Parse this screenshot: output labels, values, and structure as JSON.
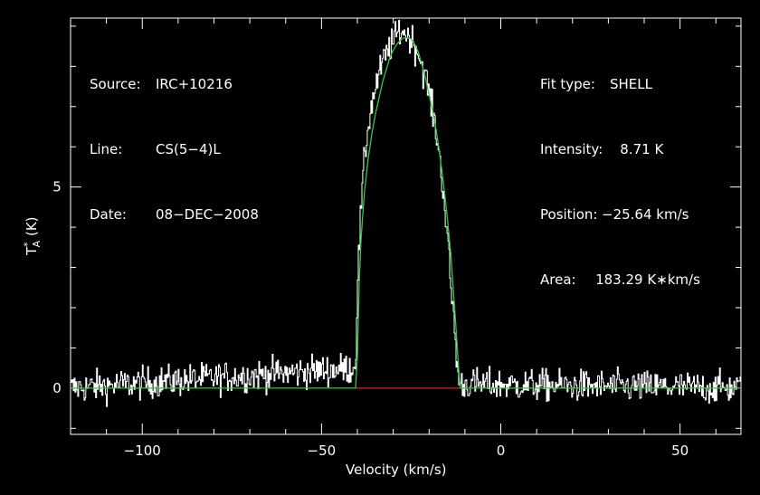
{
  "info_left": [
    {
      "key": "Source:",
      "value": "IRC+10216"
    },
    {
      "key": "Line:",
      "value": "CS(5−4)L"
    },
    {
      "key": "Date:",
      "value": "08−DEC−2008"
    }
  ],
  "info_right": [
    {
      "key": "Fit type:",
      "value": "SHELL"
    },
    {
      "key": "Intensity:",
      "value": "   8.71 K"
    },
    {
      "key": "Position:",
      "value": "−25.64 km/s"
    },
    {
      "key": "Area:",
      "value": "    183.29 K∗km/s"
    }
  ],
  "colors": {
    "background": "#000000",
    "axes": "#ffffff",
    "spectrum": "#ffffff",
    "fit": "#2ecc40",
    "baseline": "#e02020"
  },
  "chart_data": {
    "type": "line",
    "xlabel": "Velocity (km/s)",
    "ylabel": "T",
    "ylabel_super": "*",
    "ylabel_sub": "A",
    "ylabel_unit": "(K)",
    "xlim": [
      -120,
      67
    ],
    "ylim": [
      -1.15,
      9.2
    ],
    "x_ticks": [
      -100,
      -50,
      0,
      50
    ],
    "x_tick_labels": [
      "−100",
      "−50",
      "0",
      "50"
    ],
    "y_ticks": [
      0,
      5
    ],
    "y_tick_labels": [
      "0",
      "5"
    ],
    "series": [
      {
        "role": "spectrum",
        "x": [
          -120,
          -41,
          -40.5,
          -40,
          -39,
          -38,
          -37,
          -36,
          -35,
          -34,
          -33,
          -32,
          -31,
          -30,
          -29,
          -28,
          -27,
          -26,
          -25,
          -24,
          -23,
          -22,
          -21,
          -20,
          -19,
          -18,
          -17,
          -16,
          -15,
          -14,
          -13,
          -12.5,
          -12,
          -11.5,
          67
        ],
        "values": [
          0,
          0.5,
          1.0,
          2.8,
          4.6,
          5.8,
          6.6,
          7.1,
          7.5,
          7.8,
          8.1,
          8.3,
          8.5,
          8.6,
          8.8,
          8.9,
          8.85,
          8.75,
          8.7,
          8.5,
          8.3,
          8.0,
          7.7,
          7.3,
          6.8,
          6.3,
          5.6,
          4.8,
          3.7,
          2.5,
          1.5,
          0.8,
          0.3,
          0.1,
          0
        ],
        "noise_rms": 0.2
      },
      {
        "role": "fit",
        "x": [
          -120,
          -40.5,
          -40,
          -39.5,
          -39,
          -38,
          -37,
          -36,
          -35,
          -34,
          -33,
          -32,
          -31,
          -30,
          -29,
          -28,
          -27,
          -26,
          -25.64,
          -25,
          -24,
          -23,
          -22,
          -21,
          -20,
          -19,
          -18,
          -17,
          -16,
          -15,
          -14,
          -13.2,
          -12.5,
          -12,
          -11.5,
          -11.3,
          67
        ],
        "values": [
          0,
          0,
          0.8,
          2.6,
          3.7,
          4.9,
          5.7,
          6.3,
          6.8,
          7.2,
          7.6,
          7.9,
          8.2,
          8.4,
          8.55,
          8.65,
          8.71,
          8.71,
          8.71,
          8.68,
          8.55,
          8.35,
          8.05,
          7.7,
          7.3,
          6.9,
          6.4,
          5.8,
          5.1,
          4.3,
          3.4,
          2.4,
          1.5,
          0.8,
          0.2,
          0,
          0
        ]
      },
      {
        "role": "baseline",
        "x": [
          -40.5,
          -11.3
        ],
        "values": [
          0,
          0
        ]
      }
    ]
  }
}
